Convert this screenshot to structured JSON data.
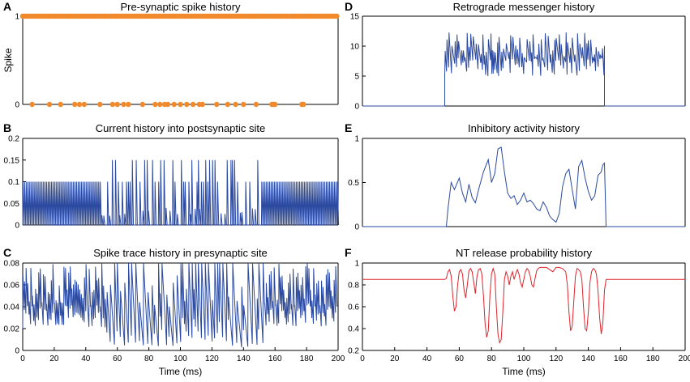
{
  "colors": {
    "blue": "#2b4aa0",
    "orange": "#f08a2c",
    "red": "#e0232b",
    "axis": "#000000"
  },
  "chart_data": [
    {
      "id": "A",
      "letter": "A",
      "type": "scatter",
      "title": "Pre-synaptic spike history",
      "xlabel": "",
      "ylabel": "Spike",
      "xlim": [
        0,
        200
      ],
      "ylim": [
        0,
        1
      ],
      "yticks": [
        0,
        1
      ],
      "yticklabels": [
        "0",
        "1"
      ],
      "xticks": [],
      "spike_times": [
        6,
        17,
        24,
        33,
        36,
        39,
        49,
        57,
        60,
        64,
        67,
        76,
        84,
        87,
        90,
        92,
        96,
        100,
        104,
        108,
        112,
        114,
        123,
        130,
        135,
        140,
        148,
        158,
        159,
        160,
        177,
        178
      ],
      "note": "orange markers: spike=1 everywhere except at listed spike_times? (silent periods shown at 0)"
    },
    {
      "id": "B",
      "letter": "B",
      "type": "line",
      "title": "Current history into postsynaptic site",
      "xlabel": "",
      "ylabel": "",
      "xlim": [
        0,
        200
      ],
      "ylim": [
        0,
        0.2
      ],
      "yticks": [
        0,
        0.05,
        0.1,
        0.15,
        0.2
      ],
      "yticklabels": [
        "0",
        "0.05",
        "0.1",
        "0.15",
        "0.2"
      ],
      "xticks": []
    },
    {
      "id": "C",
      "letter": "C",
      "type": "line",
      "title": "Spike trace history in presynaptic site",
      "xlabel": "Time (ms)",
      "ylabel": "",
      "xlim": [
        0,
        200
      ],
      "ylim": [
        0,
        0.08
      ],
      "yticks": [
        0,
        0.02,
        0.04,
        0.06,
        0.08
      ],
      "yticklabels": [
        "0",
        "0.02",
        "0.04",
        "0.06",
        "0.08"
      ],
      "xticks": [
        0,
        20,
        40,
        60,
        80,
        100,
        120,
        140,
        160,
        180,
        200
      ],
      "xticklabels": [
        "0",
        "20",
        "40",
        "60",
        "80",
        "100",
        "120",
        "140",
        "160",
        "180",
        "200"
      ]
    },
    {
      "id": "D",
      "letter": "D",
      "type": "line",
      "title": "Retrograde messenger history",
      "xlabel": "",
      "ylabel": "",
      "xlim": [
        0,
        200
      ],
      "ylim": [
        0,
        15
      ],
      "yticks": [
        0,
        5,
        10,
        15
      ],
      "yticklabels": [
        "0",
        "5",
        "10",
        "15"
      ],
      "xticks": []
    },
    {
      "id": "E",
      "letter": "E",
      "type": "line",
      "title": "Inhibitory activity history",
      "xlabel": "",
      "ylabel": "",
      "xlim": [
        0,
        200
      ],
      "ylim": [
        0,
        1
      ],
      "yticks": [
        0,
        0.5,
        1
      ],
      "yticklabels": [
        "0",
        "0.5",
        "1"
      ],
      "xticks": [],
      "series": {
        "x": [
          0,
          52,
          53,
          55,
          57,
          60,
          62,
          64,
          66,
          68,
          70,
          72,
          75,
          78,
          80,
          82,
          84,
          86,
          88,
          90,
          92,
          94,
          96,
          98,
          100,
          102,
          104,
          106,
          108,
          110,
          112,
          114,
          116,
          118,
          120,
          122,
          124,
          126,
          128,
          130,
          132,
          134,
          136,
          138,
          140,
          142,
          144,
          146,
          148,
          149,
          150,
          151,
          200
        ],
        "y": [
          0,
          0,
          0.2,
          0.5,
          0.42,
          0.55,
          0.38,
          0.28,
          0.48,
          0.33,
          0.27,
          0.42,
          0.62,
          0.76,
          0.5,
          0.6,
          0.88,
          0.9,
          0.62,
          0.38,
          0.32,
          0.35,
          0.25,
          0.3,
          0.38,
          0.28,
          0.3,
          0.26,
          0.2,
          0.18,
          0.28,
          0.22,
          0.12,
          0.08,
          0.05,
          0.15,
          0.45,
          0.6,
          0.65,
          0.42,
          0.2,
          0.68,
          0.75,
          0.55,
          0.4,
          0.3,
          0.35,
          0.58,
          0.62,
          0.7,
          0.72,
          0,
          0
        ]
      }
    },
    {
      "id": "F",
      "letter": "F",
      "type": "line",
      "title": "NT release probability history",
      "xlabel": "Time (ms)",
      "ylabel": "",
      "xlim": [
        0,
        200
      ],
      "ylim": [
        0.2,
        1
      ],
      "yticks": [
        0.2,
        0.4,
        0.6,
        0.8,
        1
      ],
      "yticklabels": [
        "0.2",
        "0.4",
        "0.6",
        "0.8",
        "1"
      ],
      "xticks": [
        0,
        20,
        40,
        60,
        80,
        100,
        120,
        140,
        160,
        180,
        200
      ],
      "xticklabels": [
        "0",
        "20",
        "40",
        "60",
        "80",
        "100",
        "120",
        "140",
        "160",
        "180",
        "200"
      ],
      "series": {
        "x": [
          0,
          51,
          52,
          53,
          54,
          55,
          56,
          57,
          58,
          59,
          60,
          61,
          62,
          63,
          64,
          65,
          66,
          67,
          68,
          69,
          70,
          71,
          72,
          73,
          74,
          75,
          76,
          77,
          78,
          79,
          80,
          81,
          82,
          83,
          84,
          85,
          86,
          87,
          88,
          89,
          90,
          91,
          92,
          93,
          94,
          95,
          96,
          97,
          98,
          99,
          100,
          101,
          102,
          103,
          104,
          105,
          106,
          107,
          108,
          109,
          110,
          112,
          114,
          116,
          118,
          120,
          122,
          124,
          126,
          127,
          128,
          129,
          130,
          131,
          132,
          133,
          134,
          135,
          136,
          137,
          138,
          139,
          140,
          141,
          142,
          143,
          144,
          145,
          146,
          147,
          148,
          149,
          150,
          151,
          152,
          200
        ],
        "y": [
          0.85,
          0.85,
          0.86,
          0.92,
          0.94,
          0.88,
          0.7,
          0.56,
          0.6,
          0.8,
          0.92,
          0.94,
          0.9,
          0.75,
          0.68,
          0.8,
          0.93,
          0.95,
          0.92,
          0.82,
          0.72,
          0.88,
          0.94,
          0.95,
          0.9,
          0.7,
          0.45,
          0.32,
          0.38,
          0.7,
          0.9,
          0.95,
          0.9,
          0.6,
          0.35,
          0.27,
          0.3,
          0.55,
          0.85,
          0.92,
          0.88,
          0.8,
          0.88,
          0.92,
          0.85,
          0.9,
          0.94,
          0.9,
          0.82,
          0.78,
          0.85,
          0.92,
          0.95,
          0.93,
          0.88,
          0.8,
          0.78,
          0.86,
          0.93,
          0.95,
          0.96,
          0.96,
          0.96,
          0.94,
          0.92,
          0.96,
          0.96,
          0.95,
          0.92,
          0.8,
          0.55,
          0.38,
          0.42,
          0.65,
          0.88,
          0.95,
          0.94,
          0.92,
          0.85,
          0.6,
          0.4,
          0.38,
          0.55,
          0.82,
          0.92,
          0.95,
          0.94,
          0.9,
          0.75,
          0.5,
          0.35,
          0.45,
          0.75,
          0.85,
          0.85,
          0.85
        ]
      }
    }
  ]
}
